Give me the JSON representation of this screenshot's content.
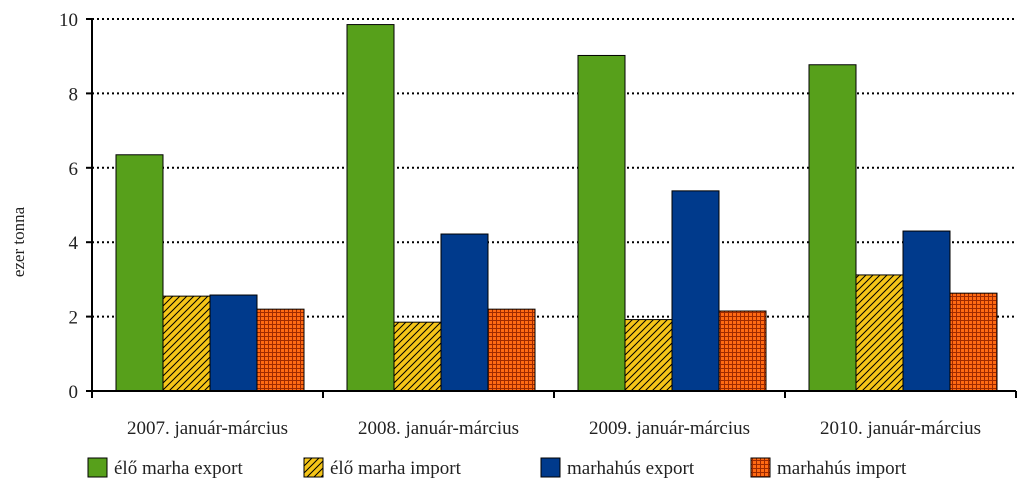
{
  "chart_data": {
    "type": "bar",
    "title": "",
    "xlabel": "",
    "ylabel": "ezer tonna",
    "ylim": [
      0,
      10
    ],
    "yticks": [
      "0",
      "2",
      "4",
      "6",
      "8",
      "10"
    ],
    "grid": "horizontal dotted",
    "legend_placement": "bottom",
    "categories": [
      "2007. január-március",
      "2008. január-március",
      "2009. január-március",
      "2010. január-március"
    ],
    "series": [
      {
        "name": "élő marha export",
        "values": [
          6.35,
          9.85,
          9.02,
          8.77
        ],
        "color": "#57a01b",
        "fill": "solid"
      },
      {
        "name": "élő marha import",
        "values": [
          2.55,
          1.85,
          1.92,
          3.12
        ],
        "color": "#f5c518",
        "fill": "diagonal-hatch"
      },
      {
        "name": "marhahús export",
        "values": [
          2.58,
          4.22,
          5.38,
          4.3
        ],
        "color": "#003a8c",
        "fill": "solid"
      },
      {
        "name": "marhahús import",
        "values": [
          2.2,
          2.2,
          2.15,
          2.63
        ],
        "color": "#ff6a13",
        "fill": "grid-hatch"
      }
    ]
  }
}
